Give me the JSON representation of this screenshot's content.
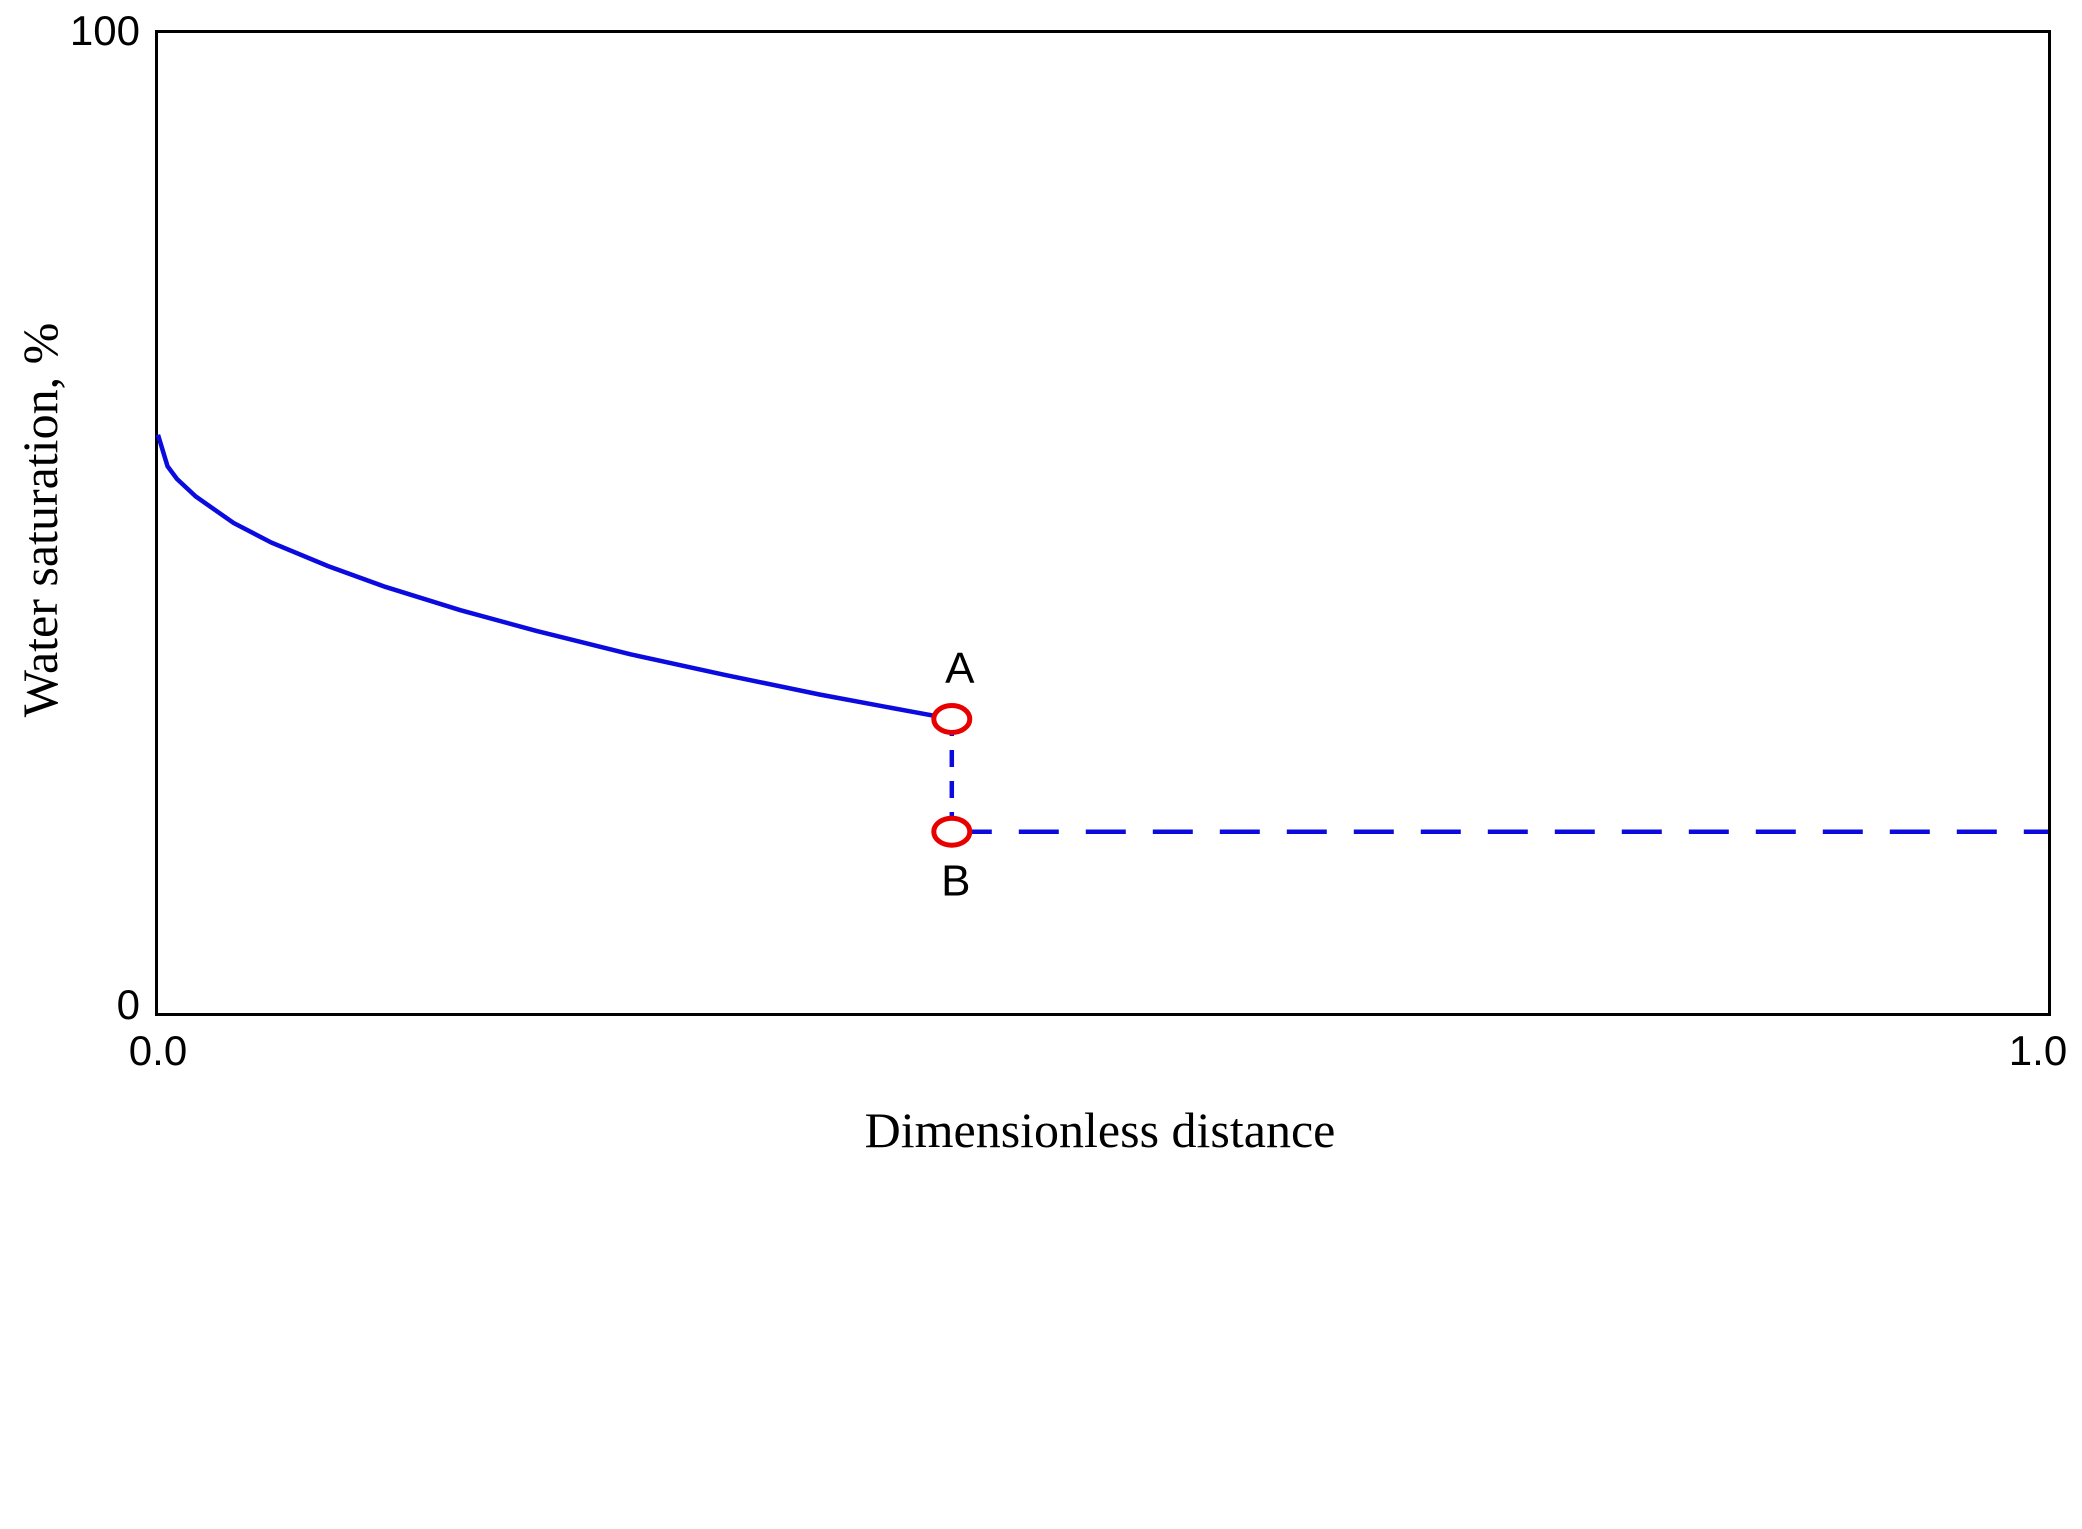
{
  "chart_data": {
    "type": "line",
    "title": "",
    "xlabel": "Dimensionless distance",
    "ylabel": "Water saturation,  %",
    "xlim": [
      0.0,
      1.0
    ],
    "ylim": [
      0,
      100
    ],
    "x_tick_labels": [
      "0.0",
      "1.0"
    ],
    "y_tick_labels": [
      "100",
      "0"
    ],
    "grid": false,
    "legend": false,
    "line_color": "#0b0be0",
    "marker_color": "#e80000",
    "series": [
      {
        "name": "saturation-profile",
        "description": "Water saturation rarefaction profile behind the front",
        "style": "solid",
        "color": "#0b0be0",
        "points": [
          [
            0.0,
            59.0
          ],
          [
            0.005,
            55.8
          ],
          [
            0.01,
            54.5
          ],
          [
            0.02,
            52.7
          ],
          [
            0.04,
            50.0
          ],
          [
            0.06,
            48.0
          ],
          [
            0.09,
            45.6
          ],
          [
            0.12,
            43.5
          ],
          [
            0.16,
            41.1
          ],
          [
            0.2,
            39.0
          ],
          [
            0.25,
            36.6
          ],
          [
            0.3,
            34.5
          ],
          [
            0.35,
            32.5
          ],
          [
            0.4,
            30.7
          ],
          [
            0.42,
            30.0
          ]
        ]
      },
      {
        "name": "shock-front",
        "description": "Saturation discontinuity at the flood front",
        "style": "dashed-short",
        "color": "#0b0be0",
        "points": [
          [
            0.42,
            30.0
          ],
          [
            0.42,
            18.5
          ]
        ]
      },
      {
        "name": "initial-saturation",
        "description": "Initial (connate) water saturation ahead of the front",
        "style": "dashed-long",
        "color": "#0b0be0",
        "points": [
          [
            0.42,
            18.5
          ],
          [
            1.0,
            18.5
          ]
        ]
      }
    ],
    "annotations": [
      {
        "label": "A",
        "x": 0.42,
        "y": 30.0,
        "marker": "open-ellipse",
        "marker_color": "#e80000",
        "label_position": "above",
        "label_dx": 8
      },
      {
        "label": "B",
        "x": 0.42,
        "y": 18.5,
        "marker": "open-ellipse",
        "marker_color": "#e80000",
        "label_position": "below",
        "label_dx": 4
      }
    ]
  }
}
